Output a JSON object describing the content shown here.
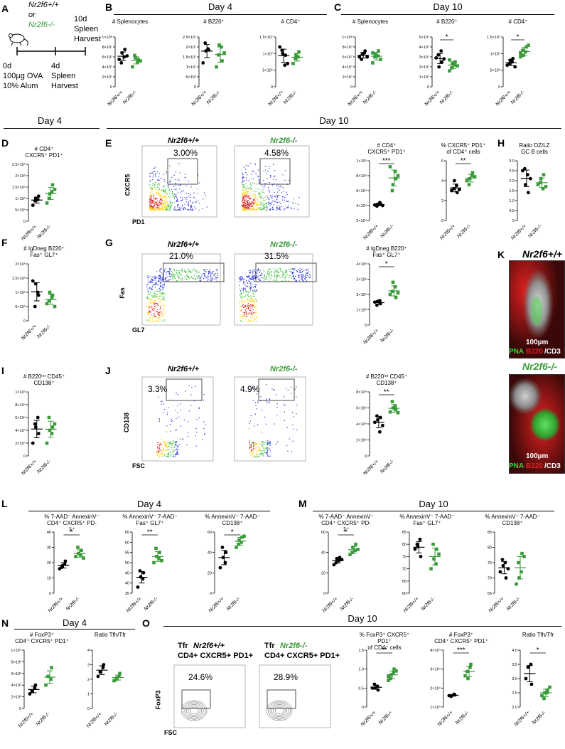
{
  "panel_letters": [
    "A",
    "B",
    "C",
    "D",
    "E",
    "F",
    "G",
    "H",
    "I",
    "J",
    "K",
    "L",
    "M",
    "N",
    "O"
  ],
  "timeline": {
    "genotype_wt": "Nr2f6+/+",
    "or": "or",
    "genotype_ko": "Nr2f6-/-",
    "day10_lines": [
      "10d",
      "Spleen",
      "Harvest"
    ],
    "day0_lines": [
      "0d",
      "100µg OVA",
      "10% Alum"
    ],
    "day4_lines": [
      "4d",
      "Spleen",
      "Harvest"
    ]
  },
  "sections": {
    "b_title": "Day 4",
    "c_title": "Day 10",
    "d_title": "Day 4",
    "e_title": "Day 10",
    "l_title": "Day 4",
    "m_title": "Day 10",
    "n_title": "Day 4",
    "o_title": "Day 10"
  },
  "genotypes": {
    "wt": "Nr2f6+/+",
    "ko": "Nr2f6-/-"
  },
  "flow": {
    "e_x": "PD1",
    "e_y": "CXCR5",
    "e_wt_pct": "3.00%",
    "e_ko_pct": "4.58%",
    "g_x": "GL7",
    "g_y": "Fas",
    "g_wt_pct": "21.0%",
    "g_ko_pct": "31.5%",
    "j_x": "FSC",
    "j_y": "CD138",
    "j_wt_pct": "3.3%",
    "j_ko_pct": "4.9%",
    "o_x": "FSC",
    "o_y": "FoxP3",
    "o_wt_pct": "24.6%",
    "o_ko_pct": "28.9%",
    "o_wt_title_a": "Tfr ",
    "o_wt_title_b": "Nr2f6+/+",
    "o_wt_title_c": "CD4+ CXCR5+ PD1+",
    "o_ko_title_a": "Tfr ",
    "o_ko_title_b": "Nr2f6-/-",
    "o_ko_title_c": "CD4+ CXCR5+ PD1+"
  },
  "micro": {
    "wt_title": "Nr2f6+/+",
    "ko_title": "Nr2f6-/-",
    "legend_pna": "PNA",
    "legend_b220": "B220",
    "legend_cd3": "/CD3",
    "scale": "100µm"
  },
  "colors": {
    "wt": "#000000",
    "ko": "#3a9a3a",
    "red_stain": "#cc1a1a",
    "green_stain": "#3fd23f"
  },
  "chart_data": [
    {
      "id": "B1",
      "type": "scatter",
      "title": "# Splenocytes",
      "ylim": [
        0,
        100000000
      ],
      "ticks": [
        "0",
        "2×10⁷",
        "4×10⁷",
        "6×10⁷",
        "8×10⁷",
        "1×10⁸"
      ],
      "series": [
        {
          "name": "Nr2f6+/+",
          "values": [
            55000000,
            60000000,
            75000000,
            48000000,
            68000000,
            62000000
          ]
        },
        {
          "name": "Nr2f6-/-",
          "values": [
            40000000,
            50000000,
            55000000,
            63000000,
            58000000,
            52000000
          ]
        }
      ],
      "sig": ""
    },
    {
      "id": "B2",
      "type": "scatter",
      "title": "# B220⁺",
      "ylim": [
        0,
        25000000
      ],
      "ticks": [
        "0",
        "5×10⁶",
        "1×10⁷",
        "1.5×10⁷",
        "2×10⁷",
        "2.5×10⁷"
      ],
      "series": [
        {
          "name": "Nr2f6+/+",
          "values": [
            12000000,
            19000000,
            18500000,
            22000000,
            18000000
          ]
        },
        {
          "name": "Nr2f6-/-",
          "values": [
            10000000,
            20000000,
            13000000,
            16000000,
            21000000,
            17000000
          ]
        }
      ],
      "sig": ""
    },
    {
      "id": "B3",
      "type": "scatter",
      "title": "# CD4⁺",
      "ylim": [
        0,
        15000000
      ],
      "ticks": [
        "0",
        "5×10⁶",
        "1×10⁷",
        "1.5×10⁷"
      ],
      "series": [
        {
          "name": "Nr2f6+/+",
          "values": [
            12000000,
            6500000,
            9500000,
            11000000,
            10000000,
            7000000
          ]
        },
        {
          "name": "Nr2f6-/-",
          "values": [
            7000000,
            9000000,
            10500000,
            8500000,
            9500000
          ]
        }
      ],
      "sig": ""
    },
    {
      "id": "C1",
      "type": "scatter",
      "title": "# Splenocytes",
      "ylim": [
        0,
        100000000
      ],
      "ticks": [
        "0",
        "2×10⁷",
        "4×10⁷",
        "6×10⁷",
        "8×10⁷",
        "1×10⁸"
      ],
      "series": [
        {
          "name": "Nr2f6+/+",
          "values": [
            60000000,
            68000000,
            72000000,
            55000000,
            65000000,
            60000000
          ]
        },
        {
          "name": "Nr2f6-/-",
          "values": [
            48000000,
            62000000,
            72000000,
            60000000,
            65000000,
            55000000,
            68000000
          ]
        }
      ],
      "sig": ""
    },
    {
      "id": "C2",
      "type": "scatter",
      "title": "# B220⁺",
      "ylim": [
        0,
        50000000
      ],
      "ticks": [
        "0",
        "1×10⁷",
        "2×10⁷",
        "3×10⁷",
        "4×10⁷",
        "5×10⁷"
      ],
      "series": [
        {
          "name": "Nr2f6+/+",
          "values": [
            29000000,
            36000000,
            25000000,
            32000000,
            20000000,
            28000000
          ]
        },
        {
          "name": "Nr2f6-/-",
          "values": [
            16000000,
            22000000,
            25000000,
            19000000,
            23000000,
            21000000,
            27000000
          ]
        }
      ],
      "sig": "*"
    },
    {
      "id": "C3",
      "type": "scatter",
      "title": "# CD4⁺",
      "ylim": [
        0,
        15000000
      ],
      "ticks": [
        "0",
        "5×10⁶",
        "1×10⁷",
        "1.5×10⁷"
      ],
      "series": [
        {
          "name": "Nr2f6+/+",
          "values": [
            6500000,
            7500000,
            8500000,
            7000000,
            8000000,
            6000000
          ]
        },
        {
          "name": "Nr2f6-/-",
          "values": [
            9000000,
            10500000,
            12000000,
            11000000,
            9500000,
            12500000,
            10000000
          ]
        }
      ],
      "sig": "*"
    },
    {
      "id": "D",
      "type": "scatter",
      "title": "# CD4⁺\nCXCR5⁺ PD1⁺",
      "ylim": [
        0,
        250000
      ],
      "ticks": [
        "0",
        "5×10⁴",
        "1×10⁵",
        "1.5×10⁵",
        "2×10⁵",
        "2.5×10⁵"
      ],
      "series": [
        {
          "name": "Nr2f6+/+",
          "values": [
            70000,
            95000,
            110000,
            90000,
            100000
          ]
        },
        {
          "name": "Nr2f6-/-",
          "values": [
            80000,
            130000,
            160000,
            100000,
            120000,
            140000
          ]
        }
      ],
      "sig": ""
    },
    {
      "id": "E1",
      "type": "scatter",
      "title": "# CD4⁺\nCXCR5⁺ PD1⁺",
      "ylim": [
        0,
        1000000
      ],
      "ticks": [
        "2×10⁴",
        "4×10⁴",
        "6×10⁴",
        "8×10⁴",
        "1×10⁵"
      ],
      "series": [
        {
          "name": "Nr2f6+/+",
          "values": [
            260000,
            300000,
            280000,
            240000,
            270000,
            250000
          ]
        },
        {
          "name": "Nr2f6-/-",
          "values": [
            900000,
            820000,
            700000,
            500000,
            600000,
            750000
          ]
        }
      ],
      "sig": "***"
    },
    {
      "id": "E2",
      "type": "scatter",
      "title": "% CXCR5⁺ PD1⁺\nof CD4⁺ cells",
      "ylim": [
        0,
        6
      ],
      "ticks": [
        "0",
        "2",
        "4",
        "6"
      ],
      "series": [
        {
          "name": "Nr2f6+/+",
          "values": [
            3.0,
            3.5,
            2.8,
            3.2,
            4.0,
            3.1
          ]
        },
        {
          "name": "Nr2f6-/-",
          "values": [
            4.0,
            4.5,
            4.8,
            3.6,
            4.2,
            4.4
          ]
        }
      ],
      "sig": "**"
    },
    {
      "id": "H",
      "type": "scatter",
      "title": "Ratio DZ/LZ\nGC B cells",
      "ylim": [
        0,
        3
      ],
      "ticks": [
        "0",
        "0.5",
        "1.0",
        "1.5",
        "2.0",
        "2.5",
        "3.0"
      ],
      "series": [
        {
          "name": "Nr2f6+/+",
          "values": [
            2.5,
            2.3,
            1.4,
            2.6,
            1.8,
            2.1
          ]
        },
        {
          "name": "Nr2f6-/-",
          "values": [
            1.8,
            1.6,
            2.3,
            1.9,
            2.1,
            1.7
          ]
        }
      ],
      "sig": ""
    },
    {
      "id": "F",
      "type": "scatter",
      "title": "# IgDneg B220⁺\nFas⁺ GL7⁺",
      "ylim": [
        0,
        2000000
      ],
      "ticks": [
        "0",
        "5×10⁵",
        "1×10⁶",
        "1.5×10⁶",
        "2×10⁶"
      ],
      "series": [
        {
          "name": "Nr2f6+/+",
          "values": [
            1400000,
            1000000,
            900000,
            500000,
            1300000
          ]
        },
        {
          "name": "Nr2f6-/-",
          "values": [
            600000,
            800000,
            900000,
            700000,
            1000000,
            500000
          ]
        }
      ],
      "sig": ""
    },
    {
      "id": "G",
      "type": "scatter",
      "title": "# IgDneg B220⁺\nFas⁺ GL7⁺",
      "ylim": [
        0,
        4000000
      ],
      "ticks": [
        "0",
        "1×10⁶",
        "2×10⁶",
        "3×10⁶",
        "4×10⁶"
      ],
      "series": [
        {
          "name": "Nr2f6+/+",
          "values": [
            1500000,
            1600000,
            1400000,
            1300000,
            1550000
          ]
        },
        {
          "name": "Nr2f6-/-",
          "values": [
            2000000,
            2500000,
            1800000,
            2200000,
            2800000,
            2100000
          ]
        }
      ],
      "sig": "*"
    },
    {
      "id": "I",
      "type": "scatter",
      "title": "# B220ⁱⁿᵗ CD45⁺\nCD138⁺",
      "ylim": [
        0,
        100000
      ],
      "ticks": [
        "0",
        "2×10⁴",
        "4×10⁴",
        "6×10⁴",
        "8×10⁴",
        "1×10⁵"
      ],
      "series": [
        {
          "name": "Nr2f6+/+",
          "values": [
            20000,
            60000,
            35000,
            50000,
            45000
          ]
        },
        {
          "name": "Nr2f6-/-",
          "values": [
            20000,
            35000,
            45000,
            60000,
            40000,
            50000
          ]
        }
      ],
      "sig": ""
    },
    {
      "id": "J",
      "type": "scatter",
      "title": "# B220ⁱⁿᵗ CD45⁺\nCD138⁺",
      "ylim": [
        0,
        80000
      ],
      "ticks": [
        "0",
        "2×10⁴",
        "4×10⁴",
        "6×10⁴",
        "8×10⁴"
      ],
      "series": [
        {
          "name": "Nr2f6+/+",
          "values": [
            42000,
            30000,
            48000,
            50000,
            45000,
            38000
          ]
        },
        {
          "name": "Nr2f6-/-",
          "values": [
            55000,
            62000,
            58000,
            68000,
            60000,
            54000
          ]
        }
      ],
      "sig": "**"
    },
    {
      "id": "L1",
      "type": "scatter",
      "title": "% 7-AAD⁻ AnnexinV⁻\nCD4⁺ CXCR5⁺ PD-1⁺",
      "ylim": [
        0,
        40
      ],
      "ticks": [
        "0",
        "10",
        "20",
        "30",
        "40"
      ],
      "series": [
        {
          "name": "Nr2f6+/+",
          "values": [
            16,
            19,
            21,
            17,
            18
          ]
        },
        {
          "name": "Nr2f6-/-",
          "values": [
            24,
            25,
            28,
            30,
            26,
            23
          ]
        }
      ],
      "sig": "*"
    },
    {
      "id": "L2",
      "type": "scatter",
      "title": "% AnnexinV⁻ 7-AAD⁻\nFas⁺ GL7⁺",
      "ylim": [
        35,
        65
      ],
      "ticks": [
        "35",
        "40",
        "45",
        "50",
        "55",
        "60",
        "65"
      ],
      "series": [
        {
          "name": "Nr2f6+/+",
          "values": [
            38,
            42,
            45,
            46,
            43
          ]
        },
        {
          "name": "Nr2f6-/-",
          "values": [
            50,
            52,
            55,
            57,
            53,
            51
          ]
        }
      ],
      "sig": "**"
    },
    {
      "id": "L3",
      "type": "scatter",
      "title": "% AnnexinV⁻ 7-AAD⁻\nCD138⁺",
      "ylim": [
        0,
        60
      ],
      "ticks": [
        "0",
        "20",
        "40",
        "60"
      ],
      "series": [
        {
          "name": "Nr2f6+/+",
          "values": [
            25,
            30,
            40,
            45,
            35
          ]
        },
        {
          "name": "Nr2f6-/-",
          "values": [
            45,
            50,
            55,
            48,
            52,
            56
          ]
        }
      ],
      "sig": "*"
    },
    {
      "id": "M1",
      "type": "scatter",
      "title": "% 7-AAD⁻ AnnexinV⁻\nCD4⁺ CXCR5⁺ PD-1⁺",
      "ylim": [
        0,
        60
      ],
      "ticks": [
        "0",
        "20",
        "40",
        "60"
      ],
      "series": [
        {
          "name": "Nr2f6+/+",
          "values": [
            28,
            32,
            35,
            30,
            34,
            33
          ]
        },
        {
          "name": "Nr2f6-/-",
          "values": [
            38,
            42,
            48,
            40,
            45,
            43
          ]
        }
      ],
      "sig": "*"
    },
    {
      "id": "M2",
      "type": "scatter",
      "title": "% AnnexinV⁻ 7-AAD⁻\nFas⁺ GL7⁺",
      "ylim": [
        60,
        85
      ],
      "ticks": [
        "60",
        "65",
        "70",
        "75",
        "80",
        "85"
      ],
      "series": [
        {
          "name": "Nr2f6+/+",
          "values": [
            78,
            82,
            75,
            80,
            79
          ]
        },
        {
          "name": "Nr2f6-/-",
          "values": [
            70,
            72,
            78,
            80,
            74,
            76
          ]
        }
      ],
      "sig": ""
    },
    {
      "id": "M3",
      "type": "scatter",
      "title": "% AnnexinV⁻ 7-AAD⁻\nCD138⁺",
      "ylim": [
        65,
        85
      ],
      "ticks": [
        "65",
        "70",
        "75",
        "80",
        "85"
      ],
      "series": [
        {
          "name": "Nr2f6+/+",
          "values": [
            72,
            75,
            70,
            76,
            74,
            73
          ]
        },
        {
          "name": "Nr2f6-/-",
          "values": [
            68,
            72,
            78,
            75,
            70,
            77
          ]
        }
      ],
      "sig": ""
    },
    {
      "id": "N1",
      "type": "scatter",
      "title": "# FoxP3⁺\nCD4⁺ CXCR5⁺ PD1⁺",
      "ylim": [
        0,
        10000
      ],
      "ticks": [
        "0",
        "2×10³",
        "4×10³",
        "6×10³",
        "8×10³",
        "1×10⁴"
      ],
      "series": [
        {
          "name": "Nr2f6+/+",
          "values": [
            2500,
            3500,
            4000,
            3000
          ]
        },
        {
          "name": "Nr2f6-/-",
          "values": [
            4000,
            5000,
            7000,
            5500
          ]
        }
      ],
      "sig": ""
    },
    {
      "id": "N2",
      "type": "scatter",
      "title": "Ratio Tfh/Tfr",
      "ylim": [
        0,
        4
      ],
      "ticks": [
        "0",
        "1",
        "2",
        "3",
        "4"
      ],
      "series": [
        {
          "name": "Nr2f6+/+",
          "values": [
            2.2,
            2.8,
            3.0,
            2.5
          ]
        },
        {
          "name": "Nr2f6-/-",
          "values": [
            1.9,
            2.2,
            2.4,
            2.0,
            2.1
          ]
        }
      ],
      "sig": ""
    },
    {
      "id": "O1",
      "type": "scatter",
      "title": "% FoxP3⁺ CXCR5⁺ PD1⁺\nof CD4⁺ cells",
      "ylim": [
        0,
        1.5
      ],
      "ticks": [
        "0",
        "0.5",
        "1.0",
        "1.5"
      ],
      "series": [
        {
          "name": "Nr2f6+/+",
          "values": [
            0.5,
            0.55,
            0.45,
            0.6,
            0.5
          ]
        },
        {
          "name": "Nr2f6-/-",
          "values": [
            0.8,
            0.9,
            1.0,
            0.75,
            0.85,
            0.95,
            0.7
          ]
        }
      ],
      "sig": "**"
    },
    {
      "id": "O2",
      "type": "scatter",
      "title": "# FoxP3⁺\nCD4⁺ CXCR5⁺ PD1⁺",
      "ylim": [
        0,
        40000
      ],
      "ticks": [
        "1×10⁴",
        "2×10⁴",
        "3×10⁴",
        "4×10⁴"
      ],
      "series": [
        {
          "name": "Nr2f6+/+",
          "values": [
            8000,
            9000,
            8500,
            7500
          ]
        },
        {
          "name": "Nr2f6-/-",
          "values": [
            22000,
            28000,
            30000,
            25000,
            20000
          ]
        }
      ],
      "sig": "***"
    },
    {
      "id": "O3",
      "type": "scatter",
      "title": "Ratio Tfh/Tfr",
      "ylim": [
        2.0,
        4.0
      ],
      "ticks": [
        "2.0",
        "2.5",
        "3.0",
        "3.5",
        "4.0"
      ],
      "series": [
        {
          "name": "Nr2f6+/+",
          "values": [
            3.0,
            3.5,
            2.8,
            3.4
          ]
        },
        {
          "name": "Nr2f6-/-",
          "values": [
            2.4,
            2.5,
            2.6,
            2.3,
            2.5,
            2.7
          ]
        }
      ],
      "sig": "*"
    }
  ]
}
